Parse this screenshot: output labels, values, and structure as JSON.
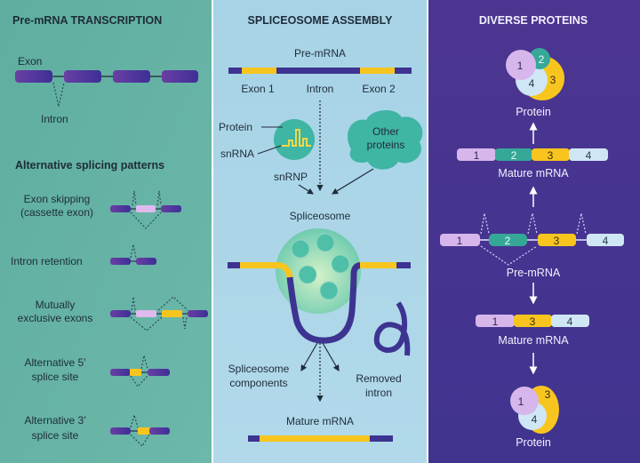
{
  "panels": {
    "transcription": {
      "title": "Pre-mRNA TRANSCRIPTION",
      "exon_label": "Exon",
      "intron_label": "Intron",
      "patterns_title": "Alternative splicing patterns",
      "patterns": [
        {
          "line1": "Exon skipping",
          "line2": "(cassette exon)"
        },
        {
          "line1": "Intron retention",
          "line2": ""
        },
        {
          "line1": "Mutually",
          "line2": "exclusive exons"
        },
        {
          "line1": "Alternative 5′",
          "line2": "splice site"
        },
        {
          "line1": "Alternative 3′",
          "line2": "splice site"
        }
      ]
    },
    "assembly": {
      "title": "SPLICEOSOME ASSEMBLY",
      "premrna_label": "Pre-mRNA",
      "exon1_label": "Exon 1",
      "intron_label": "Intron",
      "exon2_label": "Exon 2",
      "protein_label": "Protein",
      "snrna_label": "snRNA",
      "snrnp_label": "snRNP",
      "other_proteins_line1": "Other",
      "other_proteins_line2": "proteins",
      "spliceosome_label": "Spliceosome",
      "components_line1": "Spliceosome",
      "components_line2": "components",
      "removed_line1": "Removed",
      "removed_line2": "intron",
      "mature_label": "Mature mRNA"
    },
    "proteins": {
      "title": "DIVERSE PROTEINS",
      "protein_top_label": "Protein",
      "mature_top_label": "Mature mRNA",
      "premrna_label": "Pre-mRNA",
      "mature_bottom_label": "Mature mRNA",
      "protein_bottom_label": "Protein",
      "exon_numbers": [
        "1",
        "2",
        "3",
        "4"
      ]
    }
  },
  "colors": {
    "panel_teal": "#62ada1",
    "panel_blue": "#aad4e6",
    "panel_purple": "#44338f",
    "exon_purple": "#4b3499",
    "exon_yellow": "#f7c51e",
    "exon_lilac": "#d7b6ec",
    "exon_teal": "#36a898",
    "exon_lightblue": "#cfe6f5"
  }
}
